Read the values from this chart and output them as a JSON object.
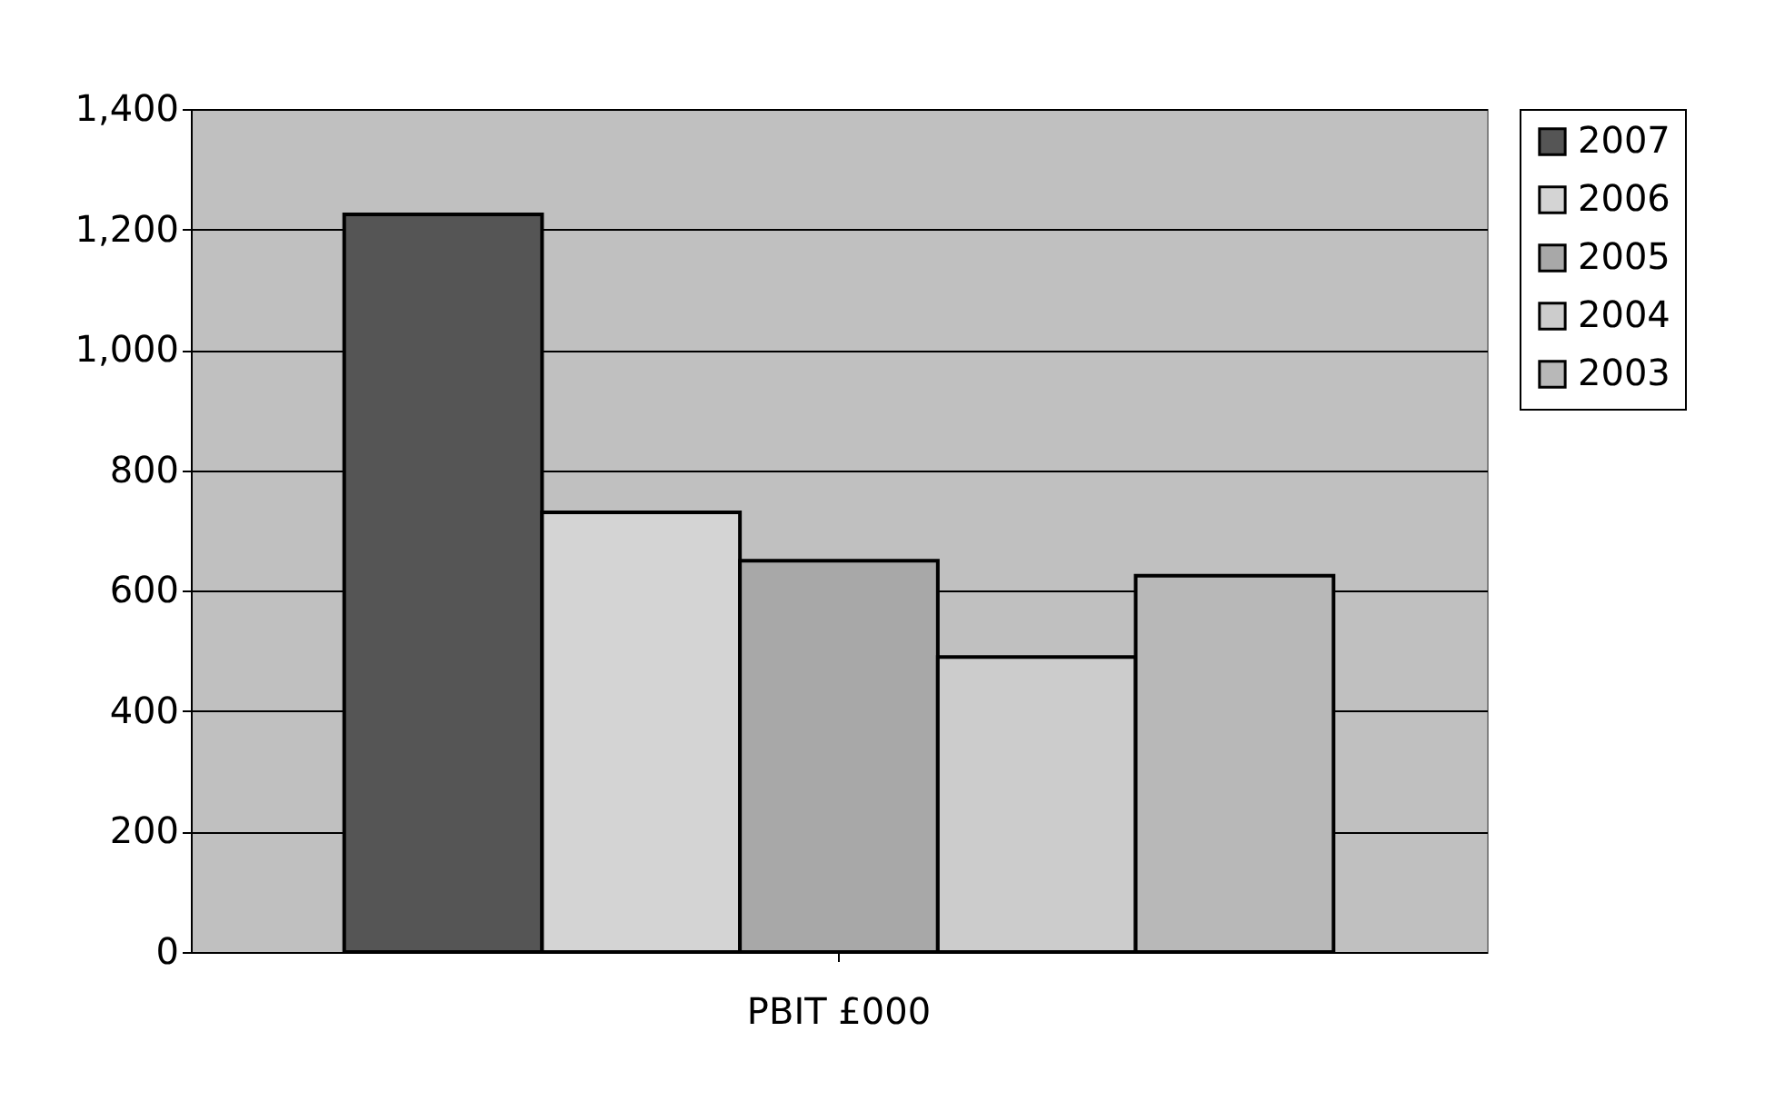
{
  "chart_data": {
    "type": "bar",
    "categories": [
      "PBIT £000"
    ],
    "series": [
      {
        "name": "2007",
        "color": "#555555",
        "values": [
          1225
        ]
      },
      {
        "name": "2006",
        "color": "#d4d4d4",
        "values": [
          730
        ]
      },
      {
        "name": "2005",
        "color": "#a8a8a8",
        "values": [
          650
        ]
      },
      {
        "name": "2004",
        "color": "#cccccc",
        "values": [
          490
        ]
      },
      {
        "name": "2003",
        "color": "#b8b8b8",
        "values": [
          625
        ]
      }
    ],
    "ylim": [
      0,
      1400
    ],
    "yticks": [
      0,
      200,
      400,
      600,
      800,
      {
        "value": 1000,
        "label": "1,000"
      },
      {
        "value": 1200,
        "label": "1,200"
      },
      {
        "value": 1400,
        "label": "1,400"
      }
    ],
    "grid": "y",
    "legend": "right"
  }
}
